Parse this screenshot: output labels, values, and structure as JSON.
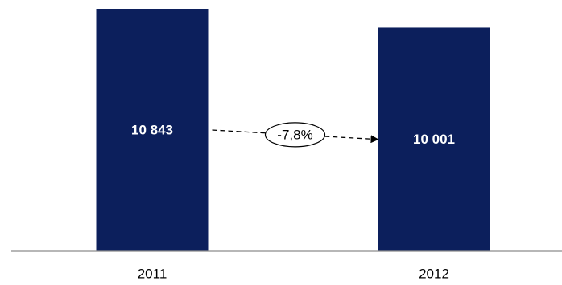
{
  "chart_data": {
    "type": "bar",
    "categories": [
      "2011",
      "2012"
    ],
    "values": [
      10843,
      10001
    ],
    "data_labels": [
      "10 843",
      "10 001"
    ],
    "change_label": "-7,8%",
    "ylim": [
      0,
      10843
    ],
    "grid": false,
    "legend": "none",
    "title": "",
    "xlabel": "",
    "ylabel": ""
  },
  "colors": {
    "bar": "#0c1f5c",
    "axis": "#8c8c8c",
    "text": "#000000",
    "bar_text": "#ffffff"
  }
}
